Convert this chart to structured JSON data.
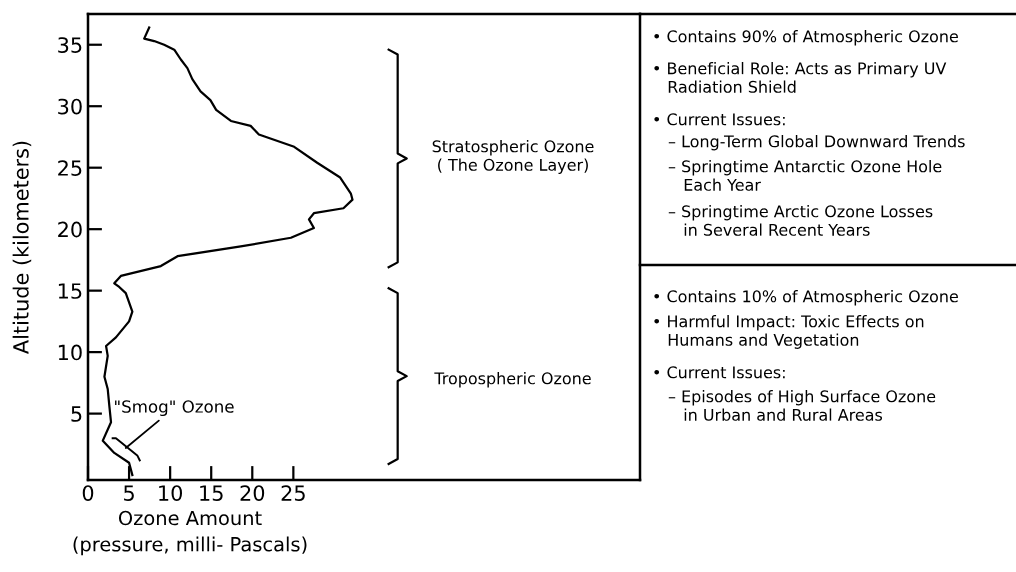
{
  "chart_data": {
    "type": "line",
    "xlabel": "Ozone Amount\n(pressure, milli- Pascals)",
    "ylabel": "Altitude (kilometers)",
    "series": [
      {
        "color": "#000000",
        "x": [
          7.45,
          6.84,
          8.06,
          9.27,
          10.5,
          11.3,
          12.1,
          12.7,
          13.7,
          14.9,
          15.6,
          17.4,
          19.8,
          20.8,
          25.1,
          27.9,
          30.7,
          32.0,
          32.2,
          31.1,
          27.5,
          26.9,
          27.5,
          24.7,
          18.6,
          10.9,
          8.87,
          4.0,
          3.2,
          3.8,
          4.6,
          5.4,
          5.0,
          3.4,
          2.2,
          2.4,
          2.0,
          2.4,
          2.6,
          2.8,
          1.8,
          3.2,
          5.0,
          5.4
        ],
        "values": [
          36.4,
          35.5,
          35.3,
          35.0,
          34.6,
          33.8,
          33.1,
          32.2,
          31.2,
          30.5,
          29.7,
          28.8,
          28.4,
          27.7,
          26.7,
          25.4,
          24.2,
          22.9,
          22.4,
          21.7,
          21.3,
          20.8,
          20.1,
          19.3,
          18.6,
          17.8,
          17.0,
          16.2,
          15.6,
          15.3,
          14.8,
          13.3,
          12.5,
          11.2,
          10.5,
          9.7,
          8.0,
          7.0,
          5.6,
          4.3,
          2.8,
          1.8,
          1.0,
          0.0
        ]
      }
    ],
    "xlim": [
      0,
      67.2
    ],
    "xticks": [
      0,
      5,
      10,
      15,
      20,
      25
    ],
    "ylim": [
      -0.4,
      37.5
    ],
    "yticks": [
      5,
      10,
      15,
      20,
      25,
      30,
      35
    ],
    "grid": false,
    "marker": "none",
    "line_style": "solid",
    "annotations": [
      {
        "text": "\"Smog\" Ozone",
        "x": 4.6,
        "y": 2.2
      },
      "Stratospheric Ozone\n( The Ozone Layer)",
      "Tropospheric Ozone",
      "• Contains 90% of Atmospheric Ozone",
      "• Beneficial Role: Acts as Primary UV\n   Radiation Shield",
      "• Current Issues:",
      "– Long-Term Global Downward Trends",
      "– Springtime Antarctic Ozone Hole\n   Each Year",
      "– Springtime Arctic Ozone Losses\n   in Several Recent Years",
      "• Contains 10% of Atmospheric Ozone",
      "• Harmful Impact: Toxic Effects on\n   Humans and Vegetation",
      "• Current Issues:",
      "– Episodes of High Surface Ozone\n   in Urban and Rural Areas"
    ]
  }
}
